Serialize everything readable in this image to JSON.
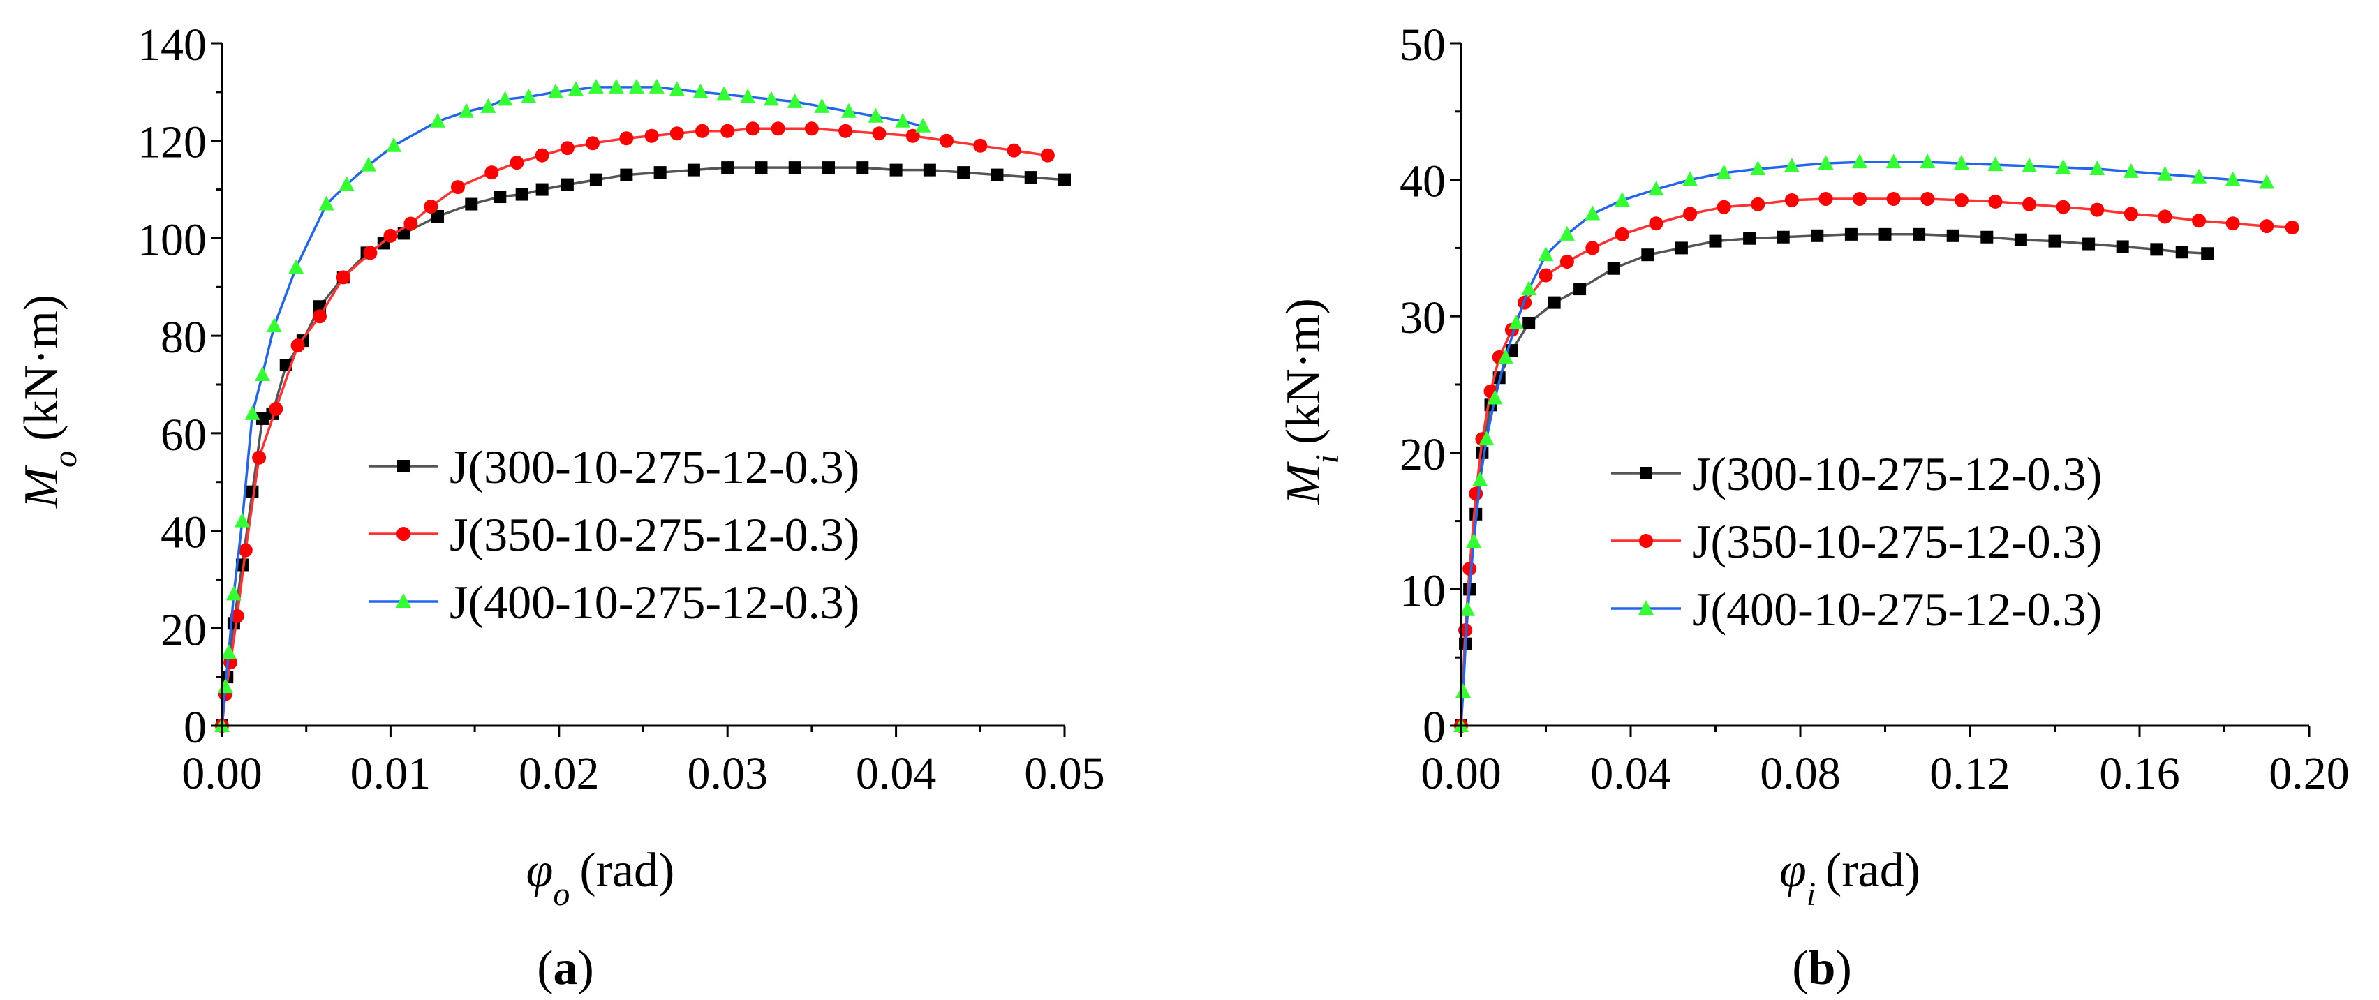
{
  "chart_data": [
    {
      "type": "line",
      "panel_label": "a",
      "xlabel": {
        "symbol": "φ",
        "subscript": "o",
        "unit": "(rad)"
      },
      "ylabel": {
        "symbol": "M",
        "subscript": "o",
        "unit": "(kN·m)"
      },
      "xlim": [
        0,
        0.05
      ],
      "ylim": [
        0,
        140
      ],
      "xticks": [
        0,
        0.01,
        0.02,
        0.03,
        0.04,
        0.05
      ],
      "xtick_labels": [
        "0.00",
        "0.01",
        "0.02",
        "0.03",
        "0.04",
        "0.05"
      ],
      "yticks": [
        0,
        20,
        40,
        60,
        80,
        100,
        120,
        140
      ],
      "ytick_labels": [
        "0",
        "20",
        "40",
        "60",
        "80",
        "100",
        "120",
        "140"
      ],
      "legend_position": "center-right",
      "series": [
        {
          "name": "J(300-10-275-12-0.3)",
          "line_color": "#555555",
          "marker_color": "#000000",
          "marker": "square",
          "x": [
            0,
            0.0003,
            0.0007,
            0.0012,
            0.0018,
            0.0024,
            0.003,
            0.0038,
            0.0048,
            0.0058,
            0.0072,
            0.0086,
            0.0096,
            0.0108,
            0.0128,
            0.0148,
            0.0165,
            0.0178,
            0.019,
            0.0205,
            0.0222,
            0.024,
            0.026,
            0.028,
            0.03,
            0.032,
            0.034,
            0.036,
            0.038,
            0.04,
            0.042,
            0.044,
            0.046,
            0.048,
            0.05
          ],
          "y": [
            0,
            10,
            21,
            33,
            48,
            63,
            64,
            74,
            79,
            86,
            92,
            97,
            99,
            101,
            104.5,
            107,
            108.5,
            109,
            110,
            111,
            112,
            113,
            113.5,
            114,
            114.5,
            114.5,
            114.5,
            114.5,
            114.5,
            114,
            114,
            113.5,
            113,
            112.5,
            112
          ]
        },
        {
          "name": "J(350-10-275-12-0.3)",
          "line_color": "#ff3333",
          "marker_color": "#ff0000",
          "marker": "circle",
          "x": [
            0,
            0.0002,
            0.0005,
            0.0009,
            0.0014,
            0.0022,
            0.0032,
            0.0045,
            0.0058,
            0.0072,
            0.0088,
            0.01,
            0.0112,
            0.0124,
            0.014,
            0.016,
            0.0175,
            0.019,
            0.0205,
            0.022,
            0.024,
            0.0255,
            0.027,
            0.0285,
            0.03,
            0.0315,
            0.033,
            0.035,
            0.037,
            0.039,
            0.041,
            0.043,
            0.045,
            0.047,
            0.049
          ],
          "y": [
            0,
            6.5,
            13,
            22.5,
            36,
            55,
            65,
            78,
            84,
            92,
            97,
            100.5,
            103,
            106.5,
            110.5,
            113.5,
            115.5,
            117,
            118.5,
            119.5,
            120.5,
            121,
            121.5,
            122,
            122,
            122.5,
            122.5,
            122.5,
            122,
            121.5,
            121,
            120,
            119,
            118,
            117
          ]
        },
        {
          "name": "J(400-10-275-12-0.3)",
          "line_color": "#2266ee",
          "marker_color": "#33ff33",
          "marker": "triangle",
          "x": [
            0,
            0.0002,
            0.0004,
            0.0007,
            0.0012,
            0.0018,
            0.0024,
            0.0031,
            0.0044,
            0.0062,
            0.0074,
            0.0087,
            0.0102,
            0.0128,
            0.0145,
            0.0158,
            0.0168,
            0.0182,
            0.0198,
            0.021,
            0.0222,
            0.0234,
            0.0246,
            0.0258,
            0.027,
            0.0284,
            0.0298,
            0.0312,
            0.0326,
            0.034,
            0.0356,
            0.0372,
            0.0388,
            0.0404,
            0.0416
          ],
          "y": [
            0,
            8,
            15,
            27,
            42,
            64,
            72,
            82,
            94,
            107,
            111,
            115,
            119,
            124,
            126,
            127,
            128.5,
            129,
            130,
            130.5,
            131,
            131,
            131,
            131,
            130.5,
            130,
            129.5,
            129,
            128.5,
            128,
            127,
            126,
            125,
            124,
            123
          ]
        }
      ]
    },
    {
      "type": "line",
      "panel_label": "b",
      "xlabel": {
        "symbol": "φ",
        "subscript": "i",
        "unit": "(rad)"
      },
      "ylabel": {
        "symbol": "M",
        "subscript": "i",
        "unit": "(kN·m)"
      },
      "xlim": [
        0,
        0.2
      ],
      "ylim": [
        0,
        50
      ],
      "xticks": [
        0,
        0.04,
        0.08,
        0.12,
        0.16,
        0.2
      ],
      "xtick_labels": [
        "0.00",
        "0.04",
        "0.08",
        "0.12",
        "0.16",
        "0.20"
      ],
      "yticks": [
        0,
        10,
        20,
        30,
        40,
        50
      ],
      "ytick_labels": [
        "0",
        "10",
        "20",
        "30",
        "40",
        "50"
      ],
      "legend_position": "center-right",
      "series": [
        {
          "name": "J(300-10-275-12-0.3)",
          "line_color": "#555555",
          "marker_color": "#000000",
          "marker": "square",
          "x": [
            0,
            0.001,
            0.002,
            0.0035,
            0.005,
            0.007,
            0.009,
            0.012,
            0.016,
            0.022,
            0.028,
            0.036,
            0.044,
            0.052,
            0.06,
            0.068,
            0.076,
            0.084,
            0.092,
            0.1,
            0.108,
            0.116,
            0.124,
            0.132,
            0.14,
            0.148,
            0.156,
            0.164,
            0.17,
            0.176
          ],
          "y": [
            0,
            6,
            10,
            15.5,
            20,
            23.5,
            25.5,
            27.5,
            29.5,
            31,
            32,
            33.5,
            34.5,
            35,
            35.5,
            35.7,
            35.8,
            35.9,
            36,
            36,
            36,
            35.9,
            35.8,
            35.6,
            35.5,
            35.3,
            35.1,
            34.9,
            34.7,
            34.6
          ]
        },
        {
          "name": "J(350-10-275-12-0.3)",
          "line_color": "#ff3333",
          "marker_color": "#ff0000",
          "marker": "circle",
          "x": [
            0,
            0.001,
            0.002,
            0.0035,
            0.005,
            0.007,
            0.009,
            0.012,
            0.015,
            0.02,
            0.025,
            0.031,
            0.038,
            0.046,
            0.054,
            0.062,
            0.07,
            0.078,
            0.086,
            0.094,
            0.102,
            0.11,
            0.118,
            0.126,
            0.134,
            0.142,
            0.15,
            0.158,
            0.166,
            0.174,
            0.182,
            0.19,
            0.196
          ],
          "y": [
            0,
            7,
            11.5,
            17,
            21,
            24.5,
            27,
            29,
            31,
            33,
            34,
            35,
            36,
            36.8,
            37.5,
            38,
            38.2,
            38.5,
            38.6,
            38.6,
            38.6,
            38.6,
            38.5,
            38.4,
            38.2,
            38,
            37.8,
            37.5,
            37.3,
            37,
            36.8,
            36.6,
            36.5
          ]
        },
        {
          "name": "J(400-10-275-12-0.3)",
          "line_color": "#2266ee",
          "marker_color": "#33ff33",
          "marker": "triangle",
          "x": [
            0,
            0.0005,
            0.0015,
            0.003,
            0.0045,
            0.006,
            0.008,
            0.0105,
            0.013,
            0.016,
            0.02,
            0.025,
            0.031,
            0.038,
            0.046,
            0.054,
            0.062,
            0.07,
            0.078,
            0.086,
            0.094,
            0.102,
            0.11,
            0.118,
            0.126,
            0.134,
            0.142,
            0.15,
            0.158,
            0.166,
            0.174,
            0.182,
            0.19
          ],
          "y": [
            0,
            2.5,
            8.5,
            13.5,
            18,
            21,
            24,
            27,
            29.5,
            32,
            34.5,
            36,
            37.5,
            38.5,
            39.3,
            40,
            40.5,
            40.8,
            41,
            41.2,
            41.3,
            41.3,
            41.3,
            41.2,
            41.1,
            41,
            40.9,
            40.8,
            40.6,
            40.4,
            40.2,
            40,
            39.8
          ]
        }
      ]
    }
  ]
}
